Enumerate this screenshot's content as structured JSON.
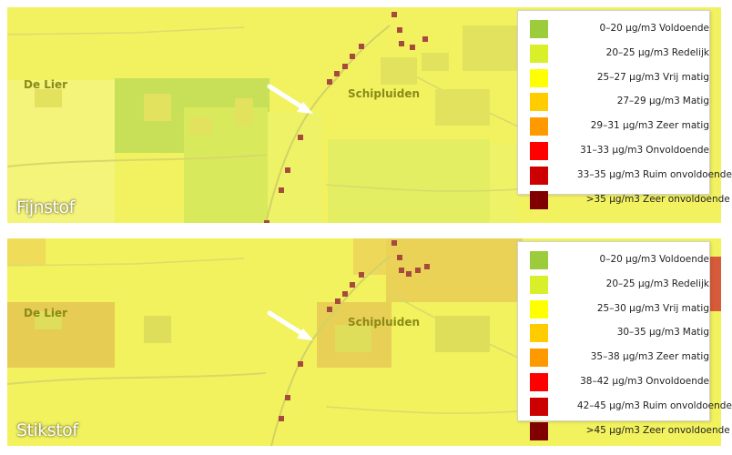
{
  "panels": [
    {
      "title": "Fijnstof",
      "place_labels": [
        "De Lier",
        "Schipluiden"
      ],
      "legend": [
        {
          "label": "0–20 µg/m3 Voldoende",
          "color": "#9ccc3c"
        },
        {
          "label": "20–25 µg/m3 Redelijk",
          "color": "#d9ef29"
        },
        {
          "label": "25–27 µg/m3 Vrij matig",
          "color": "#ffff00"
        },
        {
          "label": "27–29 µg/m3 Matig",
          "color": "#ffcc00"
        },
        {
          "label": "29–31 µg/m3 Zeer matig",
          "color": "#ff9900"
        },
        {
          "label": "31–33 µg/m3 Onvoldoende",
          "color": "#ff0000"
        },
        {
          "label": "33–35 µg/m3 Ruim onvoldoende",
          "color": "#cc0000"
        },
        {
          "label": ">35 µg/m3 Zeer onvoldoende",
          "color": "#800000"
        }
      ]
    },
    {
      "title": "Stikstof",
      "place_labels": [
        "De Lier",
        "Schipluiden"
      ],
      "legend": [
        {
          "label": "0–20 µg/m3 Voldoende",
          "color": "#9ccc3c"
        },
        {
          "label": "20–25 µg/m3 Redelijk",
          "color": "#d9ef29"
        },
        {
          "label": "25–30 µg/m3 Vrij matig",
          "color": "#ffff00"
        },
        {
          "label": "30–35 µg/m3 Matig",
          "color": "#ffcc00"
        },
        {
          "label": "35–38 µg/m3 Zeer matig",
          "color": "#ff9900"
        },
        {
          "label": "38–42 µg/m3 Onvoldoende",
          "color": "#ff0000"
        },
        {
          "label": "42–45 µg/m3 Ruim onvoldoende",
          "color": "#cc0000"
        },
        {
          "label": ">45 µg/m3 Zeer onvoldoende",
          "color": "#800000"
        }
      ]
    }
  ]
}
